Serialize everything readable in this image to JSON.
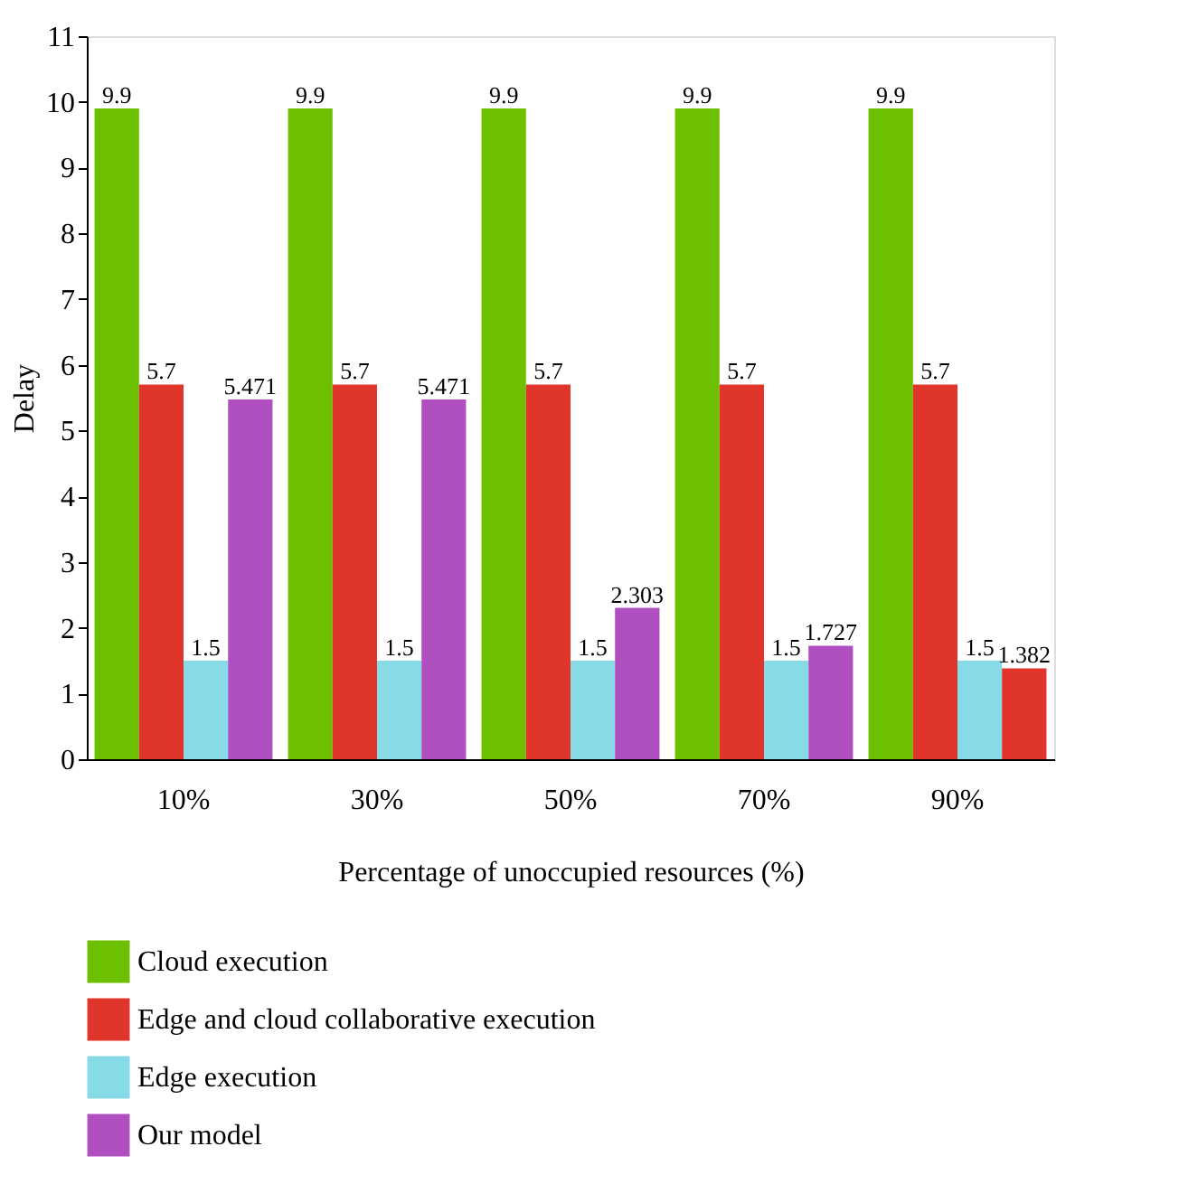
{
  "chart_data": {
    "type": "bar",
    "xlabel": "Percentage of unoccupied resources (%)",
    "ylabel": "Delay",
    "categories": [
      "10%",
      "30%",
      "50%",
      "70%",
      "90%"
    ],
    "series": [
      {
        "name": "Cloud execution",
        "color": "#6cc000",
        "values": [
          9.9,
          9.9,
          9.9,
          9.9,
          9.9
        ]
      },
      {
        "name": "Edge and cloud collaborative execution",
        "color": "#e0352a",
        "values": [
          5.7,
          5.7,
          5.7,
          5.7,
          5.7
        ]
      },
      {
        "name": "Edge execution",
        "color": "#86dbe6",
        "values": [
          1.5,
          1.5,
          1.5,
          1.5,
          1.5
        ]
      },
      {
        "name": "Our model",
        "color": "#b050c0",
        "colors": [
          "#b050c0",
          "#b050c0",
          "#b050c0",
          "#b050c0",
          "#e0352a"
        ],
        "values": [
          5.471,
          5.471,
          2.303,
          1.727,
          1.382
        ]
      }
    ],
    "ylim": [
      0,
      11
    ],
    "yticks": [
      0,
      1,
      2,
      3,
      4,
      5,
      6,
      7,
      8,
      9,
      10,
      11
    ],
    "grid": false,
    "legend": "bottom",
    "data_labels": true
  }
}
